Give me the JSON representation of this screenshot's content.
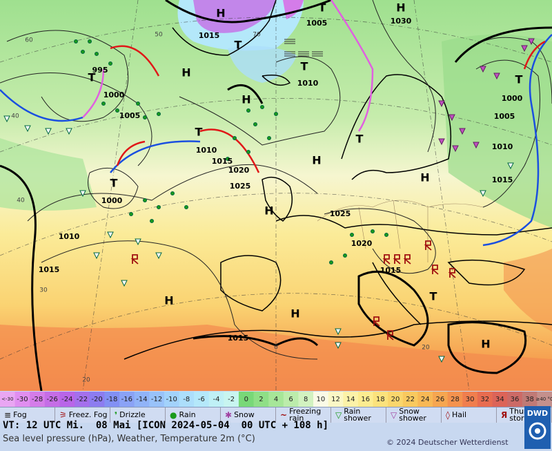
{
  "map": {
    "pressure_labels": [
      "H",
      "1015",
      "T",
      "H",
      "995",
      "T",
      "1000",
      "1005",
      "H",
      "1010",
      "T",
      "1005",
      "T",
      "H",
      "1030",
      "T",
      "1010",
      "1015",
      "1020",
      "1025",
      "T",
      "1000",
      "H",
      "T",
      "H",
      "H",
      "1025",
      "1010",
      "1015",
      "1020",
      "1015",
      "H",
      "H",
      "1015",
      "H",
      "T",
      "1000",
      "1005",
      "1010",
      "1015",
      "T"
    ],
    "temperature_labels": [
      "60",
      "50",
      "70",
      "40",
      "40",
      "30",
      "20",
      "0",
      "20"
    ]
  },
  "color_scale": [
    {
      "label": "<-30",
      "color": "#e9a6f3"
    },
    {
      "label": "-30",
      "color": "#e08ef0"
    },
    {
      "label": "-28",
      "color": "#d47ce9"
    },
    {
      "label": "-26",
      "color": "#c56de6"
    },
    {
      "label": "-24",
      "color": "#b865e8"
    },
    {
      "label": "-22",
      "color": "#a470ec"
    },
    {
      "label": "-20",
      "color": "#8c7cf0"
    },
    {
      "label": "-18",
      "color": "#8290f4"
    },
    {
      "label": "-16",
      "color": "#8aa2f6"
    },
    {
      "label": "-14",
      "color": "#90b3f8"
    },
    {
      "label": "-12",
      "color": "#98c2fa"
    },
    {
      "label": "-10",
      "color": "#a2d2fb"
    },
    {
      "label": "-8",
      "color": "#acdefb"
    },
    {
      "label": "-6",
      "color": "#b4e8fa"
    },
    {
      "label": "-4",
      "color": "#bff0f6"
    },
    {
      "label": "-2",
      "color": "#c8f5f0"
    },
    {
      "label": "0",
      "color": "#78d878"
    },
    {
      "label": "2",
      "color": "#8fdf86"
    },
    {
      "label": "4",
      "color": "#a6e698"
    },
    {
      "label": "6",
      "color": "#bcecab"
    },
    {
      "label": "8",
      "color": "#d2f2c0"
    },
    {
      "label": "10",
      "color": "#fafae6"
    },
    {
      "label": "12",
      "color": "#fbf7c6"
    },
    {
      "label": "14",
      "color": "#fcf2a8"
    },
    {
      "label": "16",
      "color": "#fcec90"
    },
    {
      "label": "18",
      "color": "#fbe27c"
    },
    {
      "label": "20",
      "color": "#fad66c"
    },
    {
      "label": "22",
      "color": "#f9c95e"
    },
    {
      "label": "24",
      "color": "#f8b855"
    },
    {
      "label": "26",
      "color": "#f6a650"
    },
    {
      "label": "28",
      "color": "#f4924e"
    },
    {
      "label": "30",
      "color": "#f07e4e"
    },
    {
      "label": "32",
      "color": "#e86c50"
    },
    {
      "label": "34",
      "color": "#dc6458"
    },
    {
      "label": "36",
      "color": "#cc6a66"
    },
    {
      "label": "38",
      "color": "#c07a76"
    },
    {
      "label": "≥40 °C",
      "color": "#c4908c"
    }
  ],
  "legend": [
    "Fog",
    "Freez. Fog",
    "Drizzle",
    "Rain",
    "Snow",
    "Freezing rain",
    "Rain shower",
    "Snow shower",
    "Hail",
    "Thunder storm"
  ],
  "footer": {
    "valid_time": "VT: 12 UTC Mi.  08 Mai [ICON 2024-05-04  00 UTC + 108 h]",
    "description": "Sea level pressure (hPa), Weather, Temperature 2m (°C)",
    "copyright": "© 2024 Deutscher Wetterdienst",
    "logo": "DWD"
  }
}
